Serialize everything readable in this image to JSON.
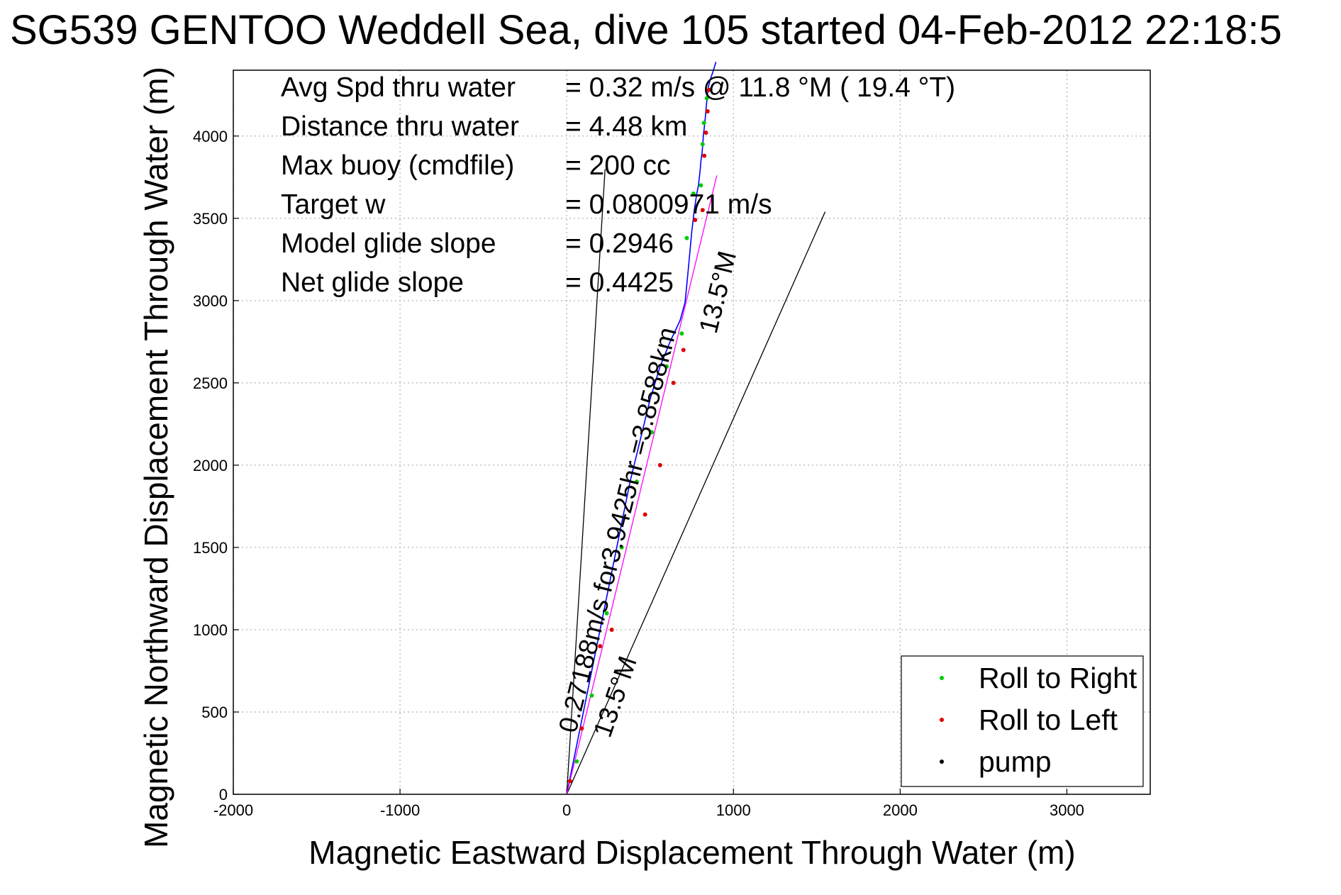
{
  "chart_data": {
    "type": "line",
    "title": "SG539 GENTOO Weddell Sea, dive 105 started 04-Feb-2012 22:18:5",
    "xlabel": "Magnetic Eastward Displacement Through Water (m)",
    "ylabel": "Magnetic Northward Displacement Through Water (m)",
    "xlim": [
      -2000,
      3500
    ],
    "ylim": [
      0,
      4400
    ],
    "x_ticks": [
      "-2000",
      "-1000",
      "0",
      "1000",
      "2000",
      "3000"
    ],
    "y_ticks": [
      "0",
      "500",
      "1000",
      "1500",
      "2000",
      "2500",
      "3000",
      "3500",
      "4000"
    ],
    "grid": true,
    "legend_position": "bottom-right",
    "legend": [
      {
        "label": "Roll to Right",
        "color": "#00cc00"
      },
      {
        "label": "Roll to Left",
        "color": "#dd0000"
      },
      {
        "label": "pump",
        "color": "#000000"
      }
    ],
    "stats": [
      {
        "label": "Avg Spd thru water",
        "value": "=  0.32 m/s @  11.8 °M ( 19.4 °T)"
      },
      {
        "label": "Distance thru water",
        "value": "=  4.48 km"
      },
      {
        "label": "Max buoy (cmdfile)",
        "value": "= 200 cc"
      },
      {
        "label": "Target w",
        "value": "= 0.0800971 m/s"
      },
      {
        "label": "Model glide slope",
        "value": "= 0.2946"
      },
      {
        "label": "Net glide slope",
        "value": "= 0.4425"
      }
    ],
    "annotations": {
      "speed_text": "0.27188m/s for3.9425hr =3.8588km",
      "heading_lower": "13.5°M",
      "heading_upper": "13.5°M"
    },
    "series": [
      {
        "name": "track",
        "color": "#0000ff",
        "x": [
          0,
          30,
          60,
          100,
          150,
          200,
          260,
          320,
          380,
          440,
          500,
          560,
          620,
          680,
          710,
          730,
          750,
          765,
          780,
          790,
          800,
          805,
          812,
          818,
          820,
          825,
          828,
          832,
          836,
          840,
          845,
          850,
          860,
          870,
          880,
          895
        ],
        "y": [
          0,
          150,
          300,
          500,
          750,
          1000,
          1300,
          1600,
          1900,
          2150,
          2400,
          2600,
          2750,
          2880,
          2990,
          3200,
          3420,
          3550,
          3650,
          3700,
          3790,
          3850,
          3900,
          3980,
          4010,
          4050,
          4080,
          4120,
          4170,
          4210,
          4260,
          4300,
          4340,
          4370,
          4400,
          4450
        ]
      },
      {
        "name": "heading",
        "color": "#ff00ff",
        "x": [
          0,
          900
        ],
        "y": [
          0,
          3760
        ]
      },
      {
        "name": "reference_left",
        "color": "#000000",
        "x": [
          0,
          230
        ],
        "y": [
          0,
          3800
        ]
      },
      {
        "name": "reference_right",
        "color": "#000000",
        "x": [
          0,
          1550
        ],
        "y": [
          0,
          3540
        ]
      }
    ],
    "roll_right_points": {
      "x": [
        60,
        150,
        240,
        330,
        420,
        510,
        600,
        690,
        720,
        760,
        805,
        815,
        823,
        840
      ],
      "y": [
        200,
        600,
        1100,
        1500,
        1900,
        2200,
        2600,
        2800,
        3380,
        3650,
        3700,
        3950,
        4080,
        4230
      ]
    },
    "roll_left_points": {
      "x": [
        20,
        90,
        200,
        270,
        470,
        560,
        640,
        700,
        770,
        815,
        825,
        835,
        845,
        852
      ],
      "y": [
        80,
        400,
        900,
        1000,
        1700,
        2000,
        2500,
        2700,
        3490,
        3550,
        3880,
        4020,
        4150,
        4280
      ]
    }
  }
}
